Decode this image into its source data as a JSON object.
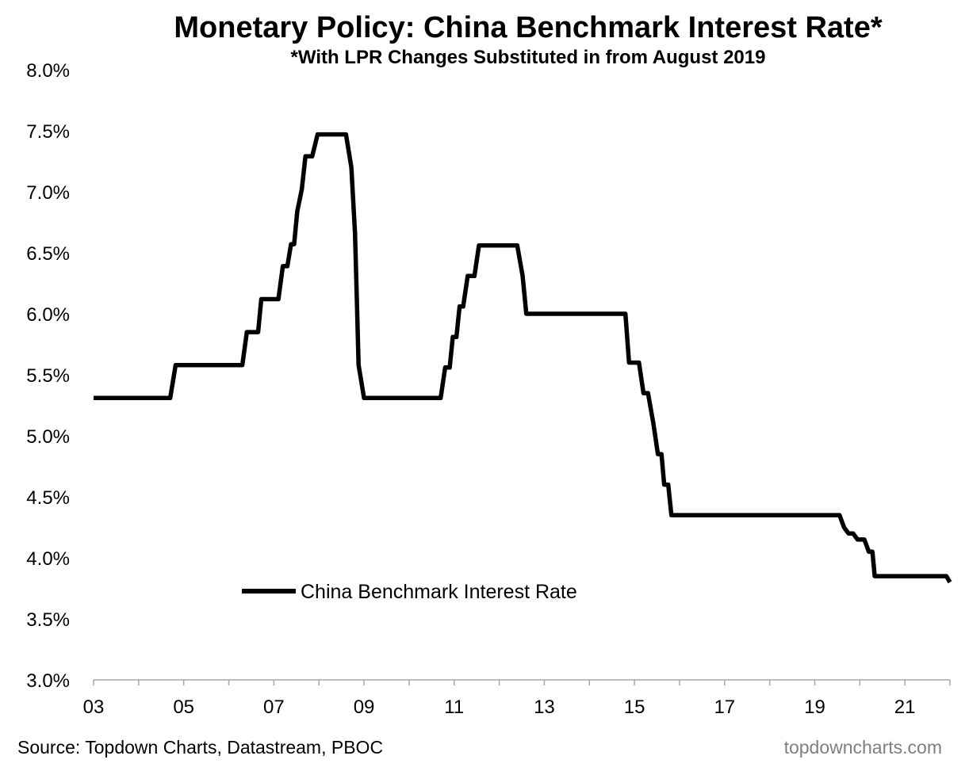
{
  "chart_data": {
    "type": "line",
    "title": "Monetary Policy: China Benchmark Interest Rate*",
    "subtitle": "*With LPR Changes Substituted in from August 2019",
    "xlabel": "",
    "ylabel": "",
    "xlim": [
      2003.0,
      2022.0
    ],
    "ylim": [
      3.0,
      8.0
    ],
    "x_ticks": [
      2003,
      2005,
      2007,
      2009,
      2011,
      2013,
      2015,
      2017,
      2019,
      2021
    ],
    "x_tick_labels": [
      "03",
      "05",
      "07",
      "09",
      "11",
      "13",
      "15",
      "17",
      "19",
      "21"
    ],
    "y_ticks": [
      3.0,
      3.5,
      4.0,
      4.5,
      5.0,
      5.5,
      6.0,
      6.5,
      7.0,
      7.5,
      8.0
    ],
    "y_tick_labels": [
      "3.0%",
      "3.5%",
      "4.0%",
      "4.5%",
      "5.0%",
      "5.5%",
      "6.0%",
      "6.5%",
      "7.0%",
      "7.5%",
      "8.0%"
    ],
    "grid": false,
    "legend_position": "lower-left",
    "series": [
      {
        "name": "China Benchmark Interest Rate",
        "color": "#000000",
        "points": [
          [
            2003.0,
            5.31
          ],
          [
            2004.7,
            5.31
          ],
          [
            2004.82,
            5.58
          ],
          [
            2006.3,
            5.58
          ],
          [
            2006.4,
            5.85
          ],
          [
            2006.65,
            5.85
          ],
          [
            2006.72,
            6.12
          ],
          [
            2007.1,
            6.12
          ],
          [
            2007.2,
            6.39
          ],
          [
            2007.3,
            6.39
          ],
          [
            2007.38,
            6.57
          ],
          [
            2007.45,
            6.57
          ],
          [
            2007.52,
            6.84
          ],
          [
            2007.62,
            7.02
          ],
          [
            2007.7,
            7.29
          ],
          [
            2007.85,
            7.29
          ],
          [
            2007.97,
            7.47
          ],
          [
            2008.6,
            7.47
          ],
          [
            2008.72,
            7.2
          ],
          [
            2008.8,
            6.66
          ],
          [
            2008.84,
            6.12
          ],
          [
            2008.88,
            5.58
          ],
          [
            2009.0,
            5.31
          ],
          [
            2010.7,
            5.31
          ],
          [
            2010.8,
            5.56
          ],
          [
            2010.9,
            5.56
          ],
          [
            2010.97,
            5.81
          ],
          [
            2011.05,
            5.81
          ],
          [
            2011.12,
            6.06
          ],
          [
            2011.2,
            6.06
          ],
          [
            2011.3,
            6.31
          ],
          [
            2011.45,
            6.31
          ],
          [
            2011.55,
            6.56
          ],
          [
            2012.4,
            6.56
          ],
          [
            2012.52,
            6.31
          ],
          [
            2012.6,
            6.0
          ],
          [
            2014.8,
            6.0
          ],
          [
            2014.88,
            5.6
          ],
          [
            2015.1,
            5.6
          ],
          [
            2015.2,
            5.35
          ],
          [
            2015.3,
            5.35
          ],
          [
            2015.42,
            5.1
          ],
          [
            2015.52,
            4.85
          ],
          [
            2015.6,
            4.85
          ],
          [
            2015.66,
            4.6
          ],
          [
            2015.75,
            4.6
          ],
          [
            2015.82,
            4.35
          ],
          [
            2019.55,
            4.35
          ],
          [
            2019.65,
            4.25
          ],
          [
            2019.75,
            4.2
          ],
          [
            2019.85,
            4.2
          ],
          [
            2019.95,
            4.15
          ],
          [
            2020.1,
            4.15
          ],
          [
            2020.2,
            4.05
          ],
          [
            2020.28,
            4.05
          ],
          [
            2020.33,
            3.85
          ],
          [
            2021.92,
            3.85
          ],
          [
            2022.0,
            3.8
          ]
        ]
      }
    ]
  },
  "footer": {
    "source": "Source: Topdown Charts, Datastream, PBOC",
    "brand": "topdowncharts.com"
  }
}
